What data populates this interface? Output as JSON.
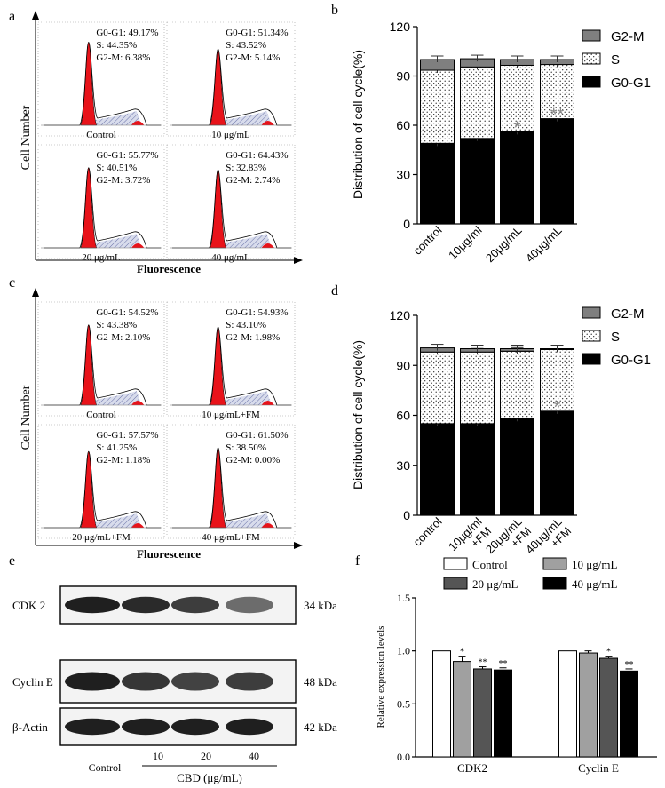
{
  "panel_letters": [
    "a",
    "b",
    "c",
    "d",
    "e",
    "f"
  ],
  "panel_a": {
    "y_label": "Cell Number",
    "x_label": "Fluorescence",
    "subplots": [
      {
        "g0g1": "G0-G1: 49.17%",
        "s": "S: 44.35%",
        "g2m": "G2-M: 6.38%",
        "caption": "Control",
        "peak": 0.85
      },
      {
        "g0g1": "G0-G1: 51.34%",
        "s": "S: 43.52%",
        "g2m": "G2-M: 5.14%",
        "caption": "10 μg/mL",
        "peak": 0.78
      },
      {
        "g0g1": "G0-G1: 55.77%",
        "s": "S: 40.51%",
        "g2m": "G2-M: 3.72%",
        "caption": "20 μg/mL",
        "peak": 0.82
      },
      {
        "g0g1": "G0-G1: 64.43%",
        "s": "S: 32.83%",
        "g2m": "G2-M: 2.74%",
        "caption": "40 μg/mL",
        "peak": 0.8
      }
    ]
  },
  "panel_c": {
    "y_label": "Cell Number",
    "x_label": "Fluorescence",
    "subplots": [
      {
        "g0g1": "G0-G1: 54.52%",
        "s": "S: 43.38%",
        "g2m": "G2-M: 2.10%",
        "caption": "Control",
        "peak": 0.82
      },
      {
        "g0g1": "G0-G1: 54.93%",
        "s": "S: 43.10%",
        "g2m": "G2-M: 1.98%",
        "caption": "10 μg/mL+FM",
        "peak": 0.8
      },
      {
        "g0g1": "G0-G1: 57.57%",
        "s": "S: 41.25%",
        "g2m": "G2-M: 1.18%",
        "caption": "20 μg/mL+FM",
        "peak": 0.78
      },
      {
        "g0g1": "G0-G1: 61.50%",
        "s": "S: 38.50%",
        "g2m": "G2-M: 0.00%",
        "caption": "40 μg/mL+FM",
        "peak": 0.82
      }
    ]
  },
  "chart_data": [
    {
      "panel": "b",
      "type": "bar",
      "stacked": true,
      "ylabel": "Distribution of cell cycle(%)",
      "ylim": [
        0,
        120
      ],
      "yticks": [
        0,
        30,
        60,
        90,
        120
      ],
      "categories": [
        "control",
        "10μg/ml",
        "20μg/mL",
        "40μg/mL"
      ],
      "series": [
        {
          "name": "G0-G1",
          "values": [
            49,
            52,
            56,
            64
          ],
          "color": "#000000"
        },
        {
          "name": "S",
          "values": [
            44.5,
            43.5,
            40.5,
            33
          ],
          "color": "#ffffff"
        },
        {
          "name": "G2-M",
          "values": [
            6.5,
            5,
            3.5,
            3
          ],
          "color": "#808080"
        }
      ],
      "annotations": [
        "",
        "",
        "*",
        "**"
      ],
      "legend": "top-right"
    },
    {
      "panel": "d",
      "type": "bar",
      "stacked": true,
      "ylabel": "Distribution of cell cycle(%)",
      "ylim": [
        0,
        120
      ],
      "yticks": [
        0,
        30,
        60,
        90,
        120
      ],
      "categories": [
        [
          "control"
        ],
        [
          "10μg/ml",
          "+FM"
        ],
        [
          "20μg/mL",
          "+FM"
        ],
        [
          "40μg/mL",
          "+FM"
        ]
      ],
      "series": [
        {
          "name": "G0-G1",
          "values": [
            55,
            55,
            58,
            62.5
          ],
          "color": "#000000"
        },
        {
          "name": "S",
          "values": [
            43,
            43,
            40.5,
            37
          ],
          "color": "#ffffff"
        },
        {
          "name": "G2-M",
          "values": [
            2.5,
            2,
            1.5,
            0.5
          ],
          "color": "#808080"
        }
      ],
      "annotations": [
        "",
        "",
        "",
        "*"
      ],
      "legend": "top-right"
    },
    {
      "panel": "f",
      "type": "bar",
      "ylabel": "Relative expression levels",
      "ylim": [
        0,
        1.5
      ],
      "yticks": [
        "0.0",
        "0.5",
        "1.0",
        "1.5"
      ],
      "categories": [
        "CDK2",
        "Cyclin E"
      ],
      "series": [
        {
          "name": "Control",
          "values": [
            1.0,
            1.0
          ],
          "errors": [
            0,
            0
          ],
          "color": "#ffffff"
        },
        {
          "name": "10 μg/mL",
          "values": [
            0.9,
            0.98
          ],
          "errors": [
            0.05,
            0.02
          ],
          "color": "#a0a0a0"
        },
        {
          "name": "20 μg/mL",
          "values": [
            0.83,
            0.93
          ],
          "errors": [
            0.02,
            0.02
          ],
          "color": "#555555"
        },
        {
          "name": "40 μg/mL",
          "values": [
            0.82,
            0.81
          ],
          "errors": [
            0.02,
            0.02
          ],
          "color": "#000000"
        }
      ],
      "significance": [
        [
          "",
          "*",
          "**",
          "**"
        ],
        [
          "",
          "",
          "*",
          "**"
        ]
      ],
      "legend": "top"
    }
  ],
  "panel_e": {
    "rows": [
      {
        "name": "CDK 2",
        "size": "34 kDa",
        "intensity": [
          0.95,
          0.9,
          0.82,
          0.62
        ]
      },
      {
        "name": "Cyclin E",
        "size": "48 kDa",
        "intensity": [
          0.95,
          0.85,
          0.8,
          0.82
        ]
      },
      {
        "name": "β-Actin",
        "size": "42 kDa",
        "intensity": [
          0.95,
          0.95,
          0.95,
          0.95
        ]
      }
    ],
    "lanes": [
      "Control",
      "10",
      "20",
      "40"
    ],
    "treatment_label": "CBD (μg/mL)"
  }
}
